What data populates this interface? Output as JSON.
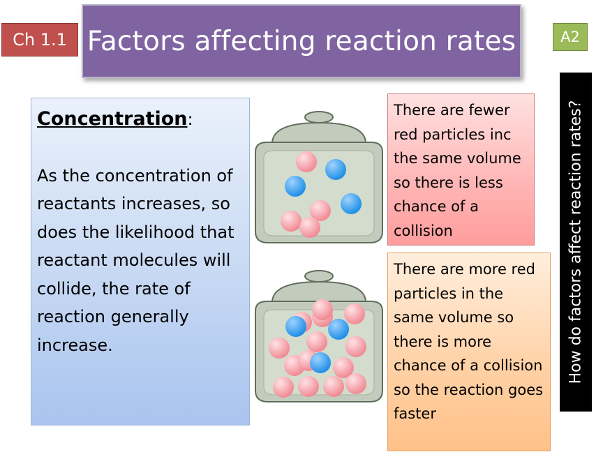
{
  "header": {
    "chapter": "Ch 1.1",
    "title": "Factors affecting reaction rates",
    "level": "A2"
  },
  "side_question": "How do factors affect reaction rates?",
  "concept": {
    "heading": "Concentration",
    "colon": ":",
    "body": "As the concentration of reactants increases, so does the likelihood that reactant molecules will collide, the rate of reaction generally increase."
  },
  "notes": {
    "low": "There are fewer red particles inc the same volume so there is less chance of a collision",
    "high": "There are more red particles in the same volume so there is more chance of a collision so the reaction goes faster"
  },
  "jars": {
    "low": {
      "red_particles": 4,
      "blue_particles": 3
    },
    "high": {
      "red_particles": 14,
      "blue_particles": 3
    }
  },
  "colors": {
    "red_particle": "#f08a93",
    "blue_particle": "#1f8fe6",
    "jar": "#c3ccbc",
    "title_bar": "#8064a2"
  }
}
